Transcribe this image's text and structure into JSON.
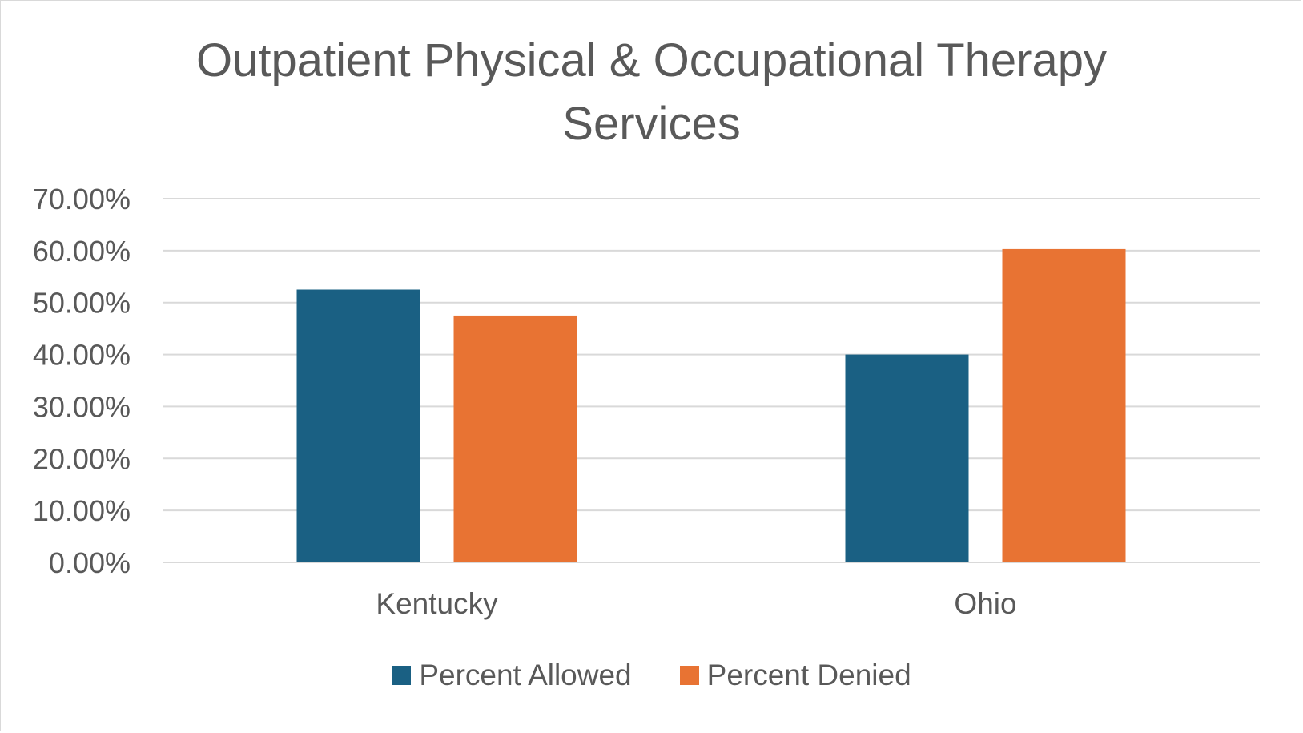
{
  "chart_data": {
    "type": "bar",
    "title_lines": [
      "Outpatient Physical & Occupational Therapy",
      "Services"
    ],
    "categories": [
      "Kentucky",
      "Ohio"
    ],
    "series": [
      {
        "name": "Percent Allowed",
        "color": "#1a6083",
        "values": [
          0.525,
          0.4
        ]
      },
      {
        "name": "Percent Denied",
        "color": "#e87333",
        "values": [
          0.475,
          0.603
        ]
      }
    ],
    "yticks": [
      "0.00%",
      "10.00%",
      "20.00%",
      "30.00%",
      "40.00%",
      "50.00%",
      "60.00%",
      "70.00%"
    ],
    "ylim": [
      0,
      0.7
    ],
    "grid": true,
    "legend_position": "bottom"
  }
}
